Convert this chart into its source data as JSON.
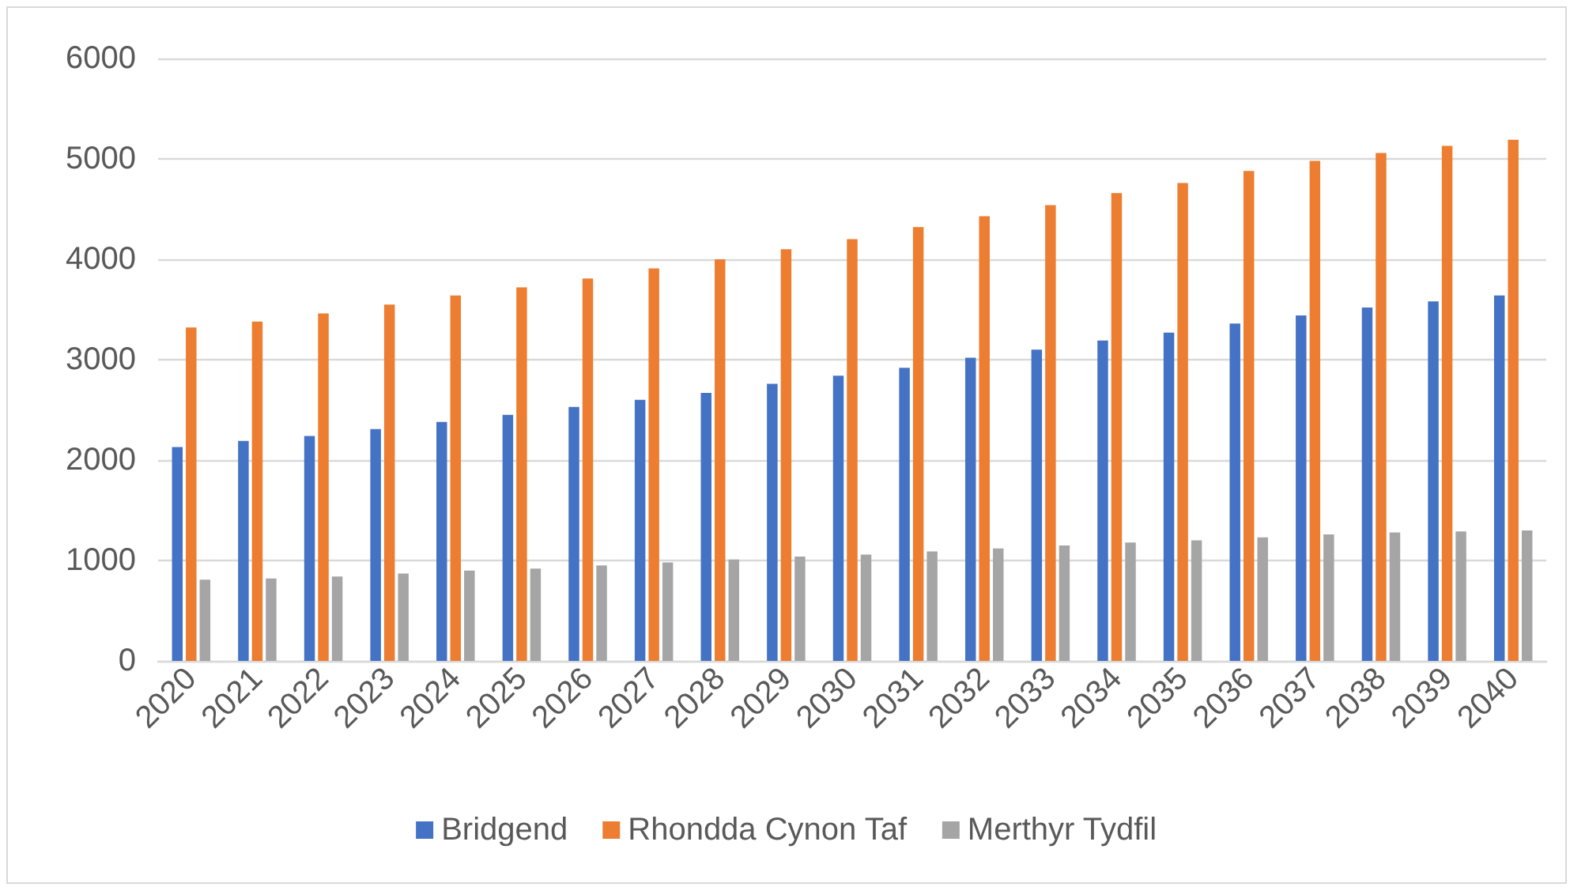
{
  "chart_data": {
    "type": "bar",
    "categories": [
      "2020",
      "2021",
      "2022",
      "2023",
      "2024",
      "2025",
      "2026",
      "2027",
      "2028",
      "2029",
      "2030",
      "2031",
      "2032",
      "2033",
      "2034",
      "2035",
      "2036",
      "2037",
      "2038",
      "2039",
      "2040"
    ],
    "series": [
      {
        "name": "Bridgend",
        "color": "#4472c4",
        "values": [
          2130,
          2190,
          2240,
          2310,
          2380,
          2450,
          2530,
          2600,
          2670,
          2760,
          2840,
          2920,
          3020,
          3100,
          3190,
          3270,
          3360,
          3440,
          3520,
          3580,
          3640
        ]
      },
      {
        "name": "Rhondda Cynon Taf",
        "color": "#ed7d31",
        "values": [
          3320,
          3380,
          3460,
          3550,
          3640,
          3720,
          3810,
          3910,
          4000,
          4100,
          4200,
          4320,
          4430,
          4540,
          4660,
          4760,
          4880,
          4980,
          5060,
          5130,
          5190
        ]
      },
      {
        "name": "Merthyr Tydfil",
        "color": "#a5a5a5",
        "values": [
          810,
          820,
          840,
          870,
          900,
          920,
          950,
          980,
          1010,
          1040,
          1060,
          1090,
          1120,
          1150,
          1180,
          1200,
          1230,
          1260,
          1280,
          1290,
          1300
        ]
      }
    ],
    "ylim": [
      0,
      6000
    ],
    "yticks": [
      0,
      1000,
      2000,
      3000,
      4000,
      5000,
      6000
    ],
    "grid": "y",
    "legend": "bottom"
  }
}
